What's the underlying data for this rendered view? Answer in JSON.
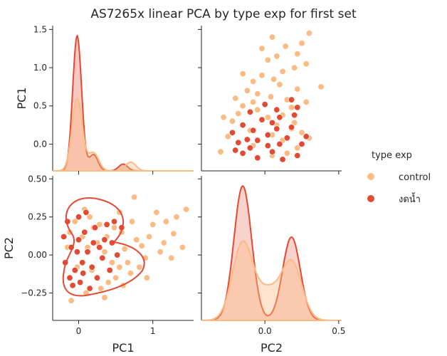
{
  "chart_data": {
    "type": "scatter",
    "title": "AS7265x linear PCA by type exp for first set",
    "variables": [
      "PC1",
      "PC2"
    ],
    "xlabels": [
      "PC1",
      "PC2"
    ],
    "ylabels": [
      "PC1",
      "PC2"
    ],
    "pc1_range": [
      -0.35,
      1.55
    ],
    "pc2_range": [
      -0.43,
      0.52
    ],
    "pc1_ticks": [
      0,
      1
    ],
    "pc1_yticks": [
      0.0,
      0.5,
      1.0,
      1.5
    ],
    "pc1_yticklabels": [
      "0.0",
      "0.5",
      "1.0",
      "1.5"
    ],
    "pc2_ticks": [
      -0.25,
      0.0,
      0.25,
      0.5
    ],
    "pc2_ticklabels": [
      "−0.25",
      "0.00",
      "0.25",
      "0.50"
    ],
    "pc2_xticks": [
      0.0,
      0.5
    ],
    "pc2_xticklabels": [
      "0.0",
      "0.5"
    ],
    "grid": false,
    "legend": {
      "title": "type exp",
      "placement": "right",
      "entries": [
        {
          "name": "control",
          "color": "#fdbb84"
        },
        {
          "name": "งดน้ำ",
          "color": "#e34a33"
        }
      ]
    },
    "series": [
      {
        "name": "control",
        "color": "#fdbb84",
        "points": [
          [
            0.05,
            0.12
          ],
          [
            0.12,
            0.05
          ],
          [
            0.25,
            0.08
          ],
          [
            0.35,
            0.02
          ],
          [
            0.45,
            -0.05
          ],
          [
            0.55,
            -0.08
          ],
          [
            0.62,
            0.04
          ],
          [
            0.7,
            -0.12
          ],
          [
            0.78,
            0.1
          ],
          [
            0.85,
            0.06
          ],
          [
            0.92,
            -0.15
          ],
          [
            1.0,
            0.2
          ],
          [
            1.05,
            0.28
          ],
          [
            1.1,
            0.02
          ],
          [
            1.18,
            0.22
          ],
          [
            1.25,
            -0.02
          ],
          [
            1.32,
            0.25
          ],
          [
            1.4,
            0.05
          ],
          [
            1.45,
            0.3
          ],
          [
            0.75,
            0.38
          ],
          [
            0.3,
            -0.22
          ],
          [
            0.4,
            -0.18
          ],
          [
            0.5,
            -0.15
          ],
          [
            0.6,
            -0.2
          ],
          [
            0.2,
            0.18
          ],
          [
            0.15,
            0.25
          ],
          [
            -0.05,
            0.22
          ],
          [
            -0.1,
            -0.3
          ],
          [
            0.02,
            -0.18
          ],
          [
            0.08,
            0.3
          ],
          [
            -0.15,
            0.05
          ],
          [
            -0.02,
            -0.08
          ],
          [
            0.18,
            -0.1
          ],
          [
            0.28,
            0.2
          ],
          [
            0.38,
            0.12
          ],
          [
            0.48,
            0.18
          ],
          [
            0.58,
            0.15
          ],
          [
            0.66,
            -0.05
          ],
          [
            0.82,
            -0.08
          ],
          [
            0.95,
            0.12
          ],
          [
            1.15,
            0.08
          ],
          [
            1.28,
            0.14
          ],
          [
            0.9,
            -0.02
          ],
          [
            0.72,
            0.22
          ],
          [
            0.55,
            0.28
          ],
          [
            0.35,
            -0.28
          ],
          [
            -0.12,
            0.15
          ],
          [
            0.1,
            -0.25
          ]
        ]
      },
      {
        "name": "งดน้ำ",
        "color": "#e34a33",
        "points": [
          [
            -0.1,
            0.05
          ],
          [
            -0.05,
            -0.1
          ],
          [
            0.0,
            0.1
          ],
          [
            0.05,
            -0.05
          ],
          [
            0.08,
            0.15
          ],
          [
            0.12,
            0.02
          ],
          [
            0.18,
            -0.08
          ],
          [
            0.22,
            0.18
          ],
          [
            0.28,
            0.05
          ],
          [
            0.32,
            -0.02
          ],
          [
            0.38,
            0.2
          ],
          [
            0.45,
            0.08
          ],
          [
            0.52,
            0.0
          ],
          [
            0.58,
            0.18
          ],
          [
            -0.15,
            0.22
          ],
          [
            -0.18,
            -0.05
          ],
          [
            -0.2,
            0.12
          ],
          [
            -0.08,
            -0.2
          ],
          [
            0.02,
            -0.18
          ],
          [
            0.15,
            -0.22
          ],
          [
            0.25,
            -0.15
          ],
          [
            0.1,
            0.28
          ],
          [
            0.0,
            0.25
          ],
          [
            -0.12,
            -0.15
          ],
          [
            0.35,
            0.1
          ],
          [
            0.42,
            -0.1
          ],
          [
            0.48,
            0.22
          ],
          [
            0.2,
            0.08
          ],
          [
            -0.02,
            0.02
          ],
          [
            0.06,
            -0.12
          ]
        ]
      }
    ]
  }
}
